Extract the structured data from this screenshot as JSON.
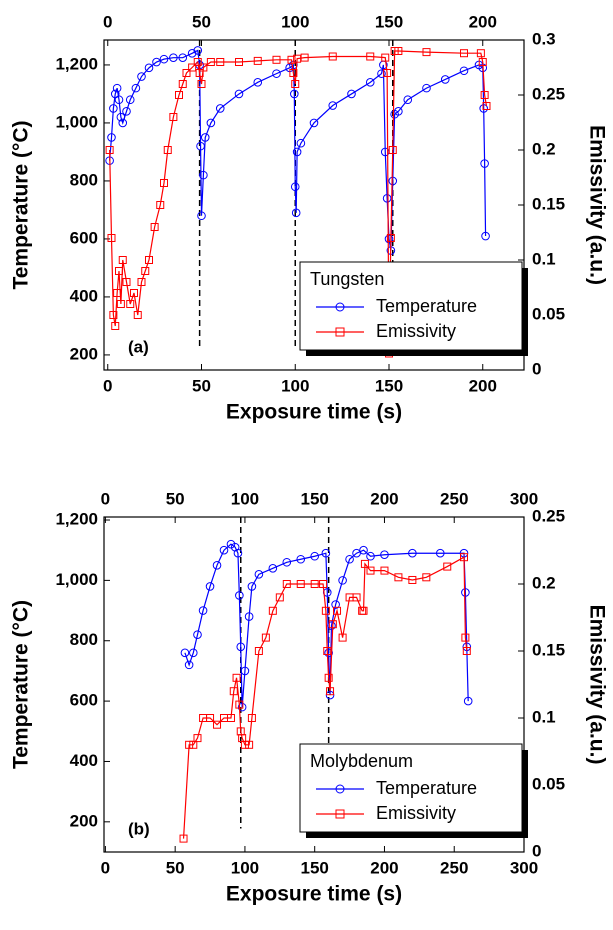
{
  "chart_data": [
    {
      "type": "line",
      "xlabel": "Exposure time (s)",
      "ylabel": "Temperature (°C)",
      "y2label": "Emissivity (a.u.)",
      "legend_title": "Tungsten",
      "legend": "lower right",
      "annotation": "(a)",
      "xlim": [
        -2,
        222
      ],
      "xticks": [
        0,
        50,
        100,
        150,
        200
      ],
      "ylim": [
        148,
        1286
      ],
      "yticks": [
        200,
        400,
        600,
        800,
        {
          "value": 1000,
          "label": "1,000"
        },
        {
          "value": 1200,
          "label": "1,200"
        }
      ],
      "y2lim": [
        0,
        0.3
      ],
      "y2ticks": [
        0,
        0.05,
        0.1,
        0.15,
        0.2,
        0.25,
        0.3
      ],
      "vlines": [
        49,
        100,
        152
      ],
      "series": [
        {
          "name": "Temperature",
          "color": "#0000ff",
          "marker": "circle",
          "x": [
            1,
            2,
            3,
            4,
            5,
            6,
            7,
            8,
            10,
            12,
            15,
            18,
            22,
            26,
            30,
            35,
            40,
            45,
            48,
            49,
            49.5,
            50,
            51,
            52,
            55,
            60,
            70,
            80,
            90,
            97,
            99,
            99.5,
            100,
            100.5,
            101,
            103,
            110,
            120,
            130,
            140,
            146,
            147,
            148,
            149,
            150,
            151,
            152,
            153,
            155,
            160,
            170,
            180,
            190,
            198,
            200,
            200.5,
            201,
            201.5
          ],
          "values": [
            870,
            950,
            1050,
            1100,
            1120,
            1080,
            1020,
            1000,
            1040,
            1080,
            1120,
            1160,
            1190,
            1210,
            1220,
            1225,
            1225,
            1240,
            1250,
            1200,
            920,
            680,
            820,
            950,
            1000,
            1050,
            1100,
            1140,
            1170,
            1190,
            1200,
            1100,
            780,
            690,
            900,
            930,
            1000,
            1060,
            1100,
            1140,
            1170,
            1200,
            900,
            740,
            600,
            560,
            800,
            1030,
            1040,
            1080,
            1120,
            1150,
            1180,
            1200,
            1190,
            1050,
            860,
            610
          ]
        },
        {
          "name": "Emissivity",
          "color": "#ff0000",
          "marker": "square",
          "axis": "y2",
          "x": [
            1,
            2,
            3,
            4,
            5,
            6,
            7,
            8,
            10,
            12,
            14,
            16,
            18,
            20,
            22,
            25,
            28,
            30,
            32,
            35,
            38,
            40,
            42,
            45,
            48,
            49,
            50,
            51,
            55,
            60,
            70,
            80,
            90,
            98,
            99,
            100,
            101,
            105,
            120,
            140,
            148,
            149,
            150,
            151,
            152,
            153,
            155,
            170,
            190,
            199,
            200,
            201,
            202
          ],
          "values": [
            0.2,
            0.12,
            0.05,
            0.04,
            0.07,
            0.09,
            0.06,
            0.1,
            0.08,
            0.06,
            0.07,
            0.05,
            0.08,
            0.09,
            0.1,
            0.13,
            0.15,
            0.17,
            0.2,
            0.23,
            0.25,
            0.26,
            0.27,
            0.275,
            0.28,
            0.27,
            0.26,
            0.275,
            0.28,
            0.28,
            0.28,
            0.281,
            0.282,
            0.282,
            0.27,
            0.26,
            0.283,
            0.284,
            0.285,
            0.285,
            0.284,
            0.27,
            0.015,
            0.12,
            0.2,
            0.29,
            0.29,
            0.289,
            0.288,
            0.288,
            0.28,
            0.25,
            0.24
          ]
        }
      ]
    },
    {
      "type": "line",
      "xlabel": "Exposure time (s)",
      "ylabel": "Temperature (°C)",
      "y2label": "Emissivity (a.u.)",
      "legend_title": "Molybdenum",
      "legend": "lower right",
      "annotation": "(b)",
      "xlim": [
        -1,
        300
      ],
      "xticks": [
        0,
        50,
        100,
        150,
        200,
        250,
        300
      ],
      "ylim": [
        100,
        1210
      ],
      "yticks": [
        200,
        400,
        600,
        800,
        {
          "value": 1000,
          "label": "1,000"
        },
        {
          "value": 1200,
          "label": "1,200"
        }
      ],
      "y2lim": [
        0,
        0.25
      ],
      "y2ticks": [
        0,
        0.05,
        0.1,
        0.15,
        0.2,
        0.25
      ],
      "vlines": [
        97,
        160
      ],
      "series": [
        {
          "name": "Temperature",
          "color": "#0000ff",
          "marker": "circle",
          "x": [
            57,
            60,
            63,
            66,
            70,
            75,
            80,
            85,
            90,
            93,
            95,
            96,
            97,
            98,
            100,
            103,
            105,
            110,
            120,
            130,
            140,
            150,
            158,
            159,
            160,
            161,
            162,
            165,
            170,
            175,
            180,
            185,
            190,
            200,
            220,
            240,
            257,
            258,
            259,
            260
          ],
          "values": [
            760,
            720,
            760,
            820,
            900,
            980,
            1050,
            1100,
            1120,
            1110,
            1090,
            950,
            780,
            580,
            700,
            880,
            980,
            1020,
            1040,
            1060,
            1070,
            1080,
            1090,
            960,
            760,
            620,
            850,
            920,
            1000,
            1070,
            1090,
            1100,
            1080,
            1085,
            1090,
            1090,
            1090,
            960,
            780,
            600
          ]
        },
        {
          "name": "Emissivity",
          "color": "#ff0000",
          "marker": "square",
          "axis": "y2",
          "x": [
            56,
            60,
            63,
            66,
            70,
            75,
            80,
            85,
            90,
            92,
            94,
            96,
            97,
            98,
            100,
            103,
            105,
            110,
            115,
            120,
            125,
            130,
            140,
            150,
            156,
            158,
            159,
            160,
            161,
            163,
            166,
            170,
            175,
            180,
            184,
            185,
            186,
            190,
            200,
            210,
            220,
            230,
            245,
            257,
            258,
            259
          ],
          "values": [
            0.01,
            0.08,
            0.08,
            0.085,
            0.1,
            0.1,
            0.095,
            0.1,
            0.1,
            0.12,
            0.13,
            0.11,
            0.09,
            0.085,
            0.08,
            0.08,
            0.1,
            0.15,
            0.16,
            0.18,
            0.19,
            0.2,
            0.2,
            0.2,
            0.2,
            0.18,
            0.15,
            0.13,
            0.12,
            0.17,
            0.18,
            0.16,
            0.19,
            0.19,
            0.18,
            0.18,
            0.215,
            0.21,
            0.21,
            0.205,
            0.203,
            0.205,
            0.213,
            0.22,
            0.16,
            0.15
          ]
        }
      ]
    }
  ]
}
